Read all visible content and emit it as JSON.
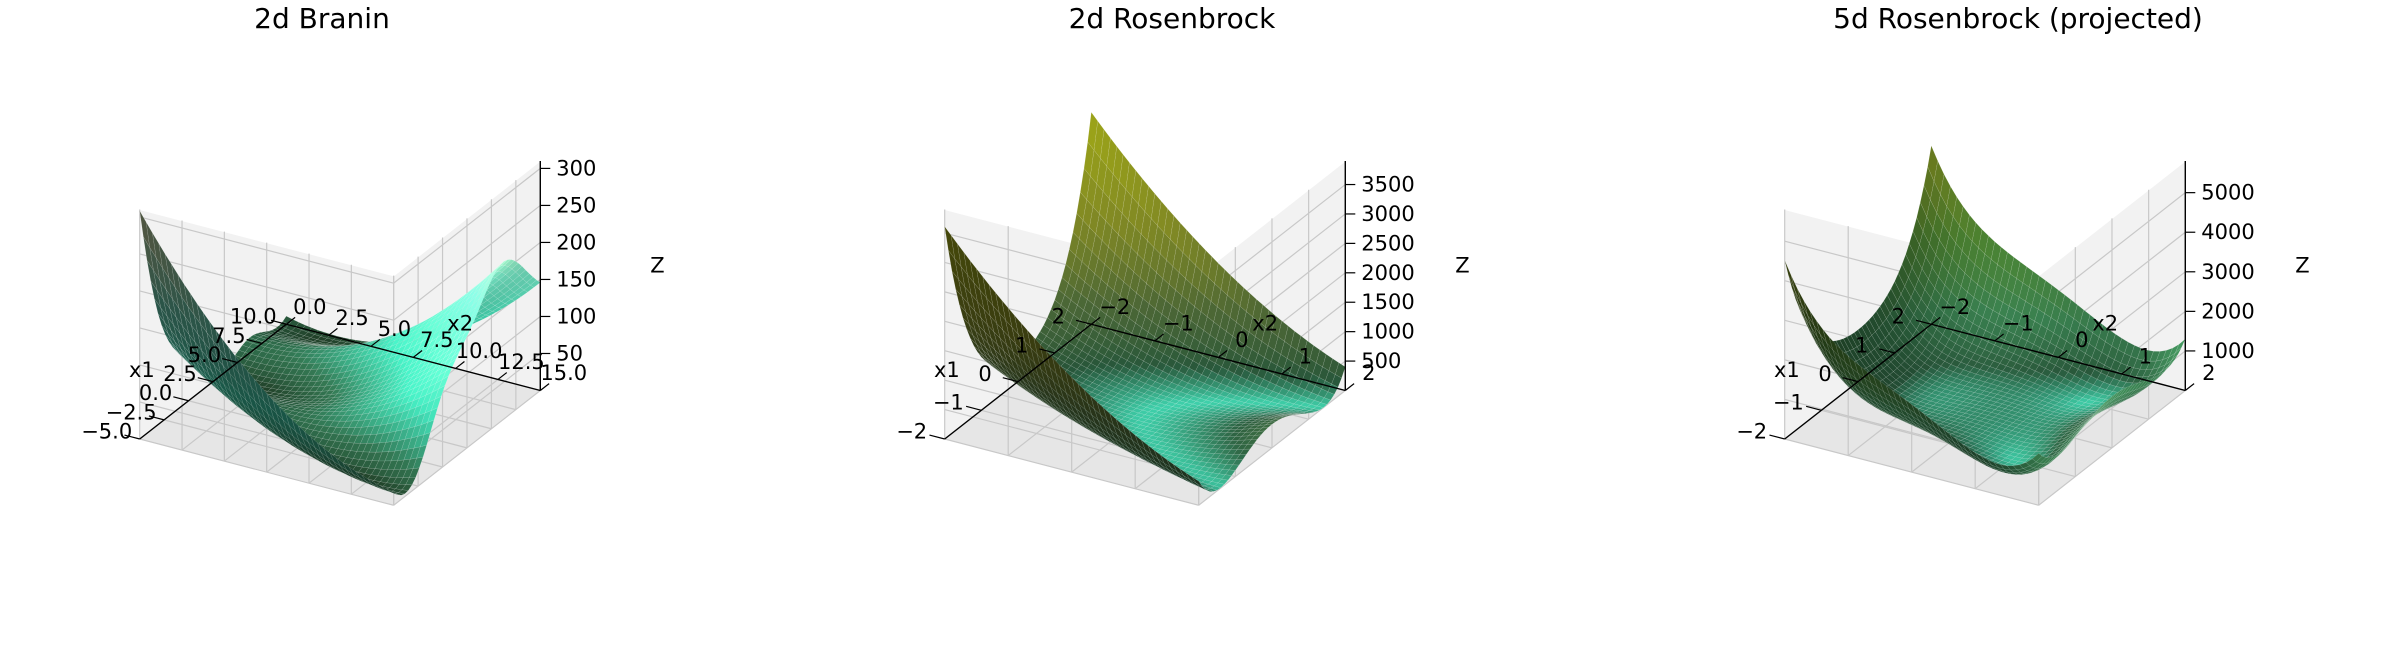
{
  "chart_data": [
    {
      "type": "surface",
      "title": "2d Branin",
      "xlabel": "x1",
      "ylabel": "x2",
      "zlabel": "Z",
      "function": "branin",
      "xlim": [
        -5,
        10
      ],
      "ylim": [
        0,
        15
      ],
      "zlim": [
        0,
        310
      ],
      "x_ticks": [
        -5.0,
        -2.5,
        0.0,
        2.5,
        5.0,
        7.5,
        10.0
      ],
      "x_tick_labels": [
        "−5.0",
        "−2.5",
        "0.0",
        "2.5",
        "5.0",
        "7.5",
        "10.0"
      ],
      "y_ticks": [
        0.0,
        2.5,
        5.0,
        7.5,
        10.0,
        12.5,
        15.0
      ],
      "y_tick_labels": [
        "0.0",
        "2.5",
        "5.0",
        "7.5",
        "10.0",
        "12.5",
        "15.0"
      ],
      "z_ticks": [
        50,
        100,
        150,
        200,
        250,
        300
      ],
      "z_tick_labels": [
        "50",
        "100",
        "150",
        "200",
        "250",
        "300"
      ],
      "colormap": [
        "#1f3a24",
        "#2e6b4a",
        "#3fd6b0",
        "#7cf2cf",
        "#f3f7b8"
      ],
      "grid": true
    },
    {
      "type": "surface",
      "title": "2d Rosenbrock",
      "xlabel": "x1",
      "ylabel": "x2",
      "zlabel": "Z",
      "function": "rosenbrock2d",
      "xlim": [
        -2,
        2
      ],
      "ylim": [
        -2,
        2
      ],
      "zlim": [
        0,
        3900
      ],
      "x_ticks": [
        -2,
        -1,
        0,
        1,
        2
      ],
      "x_tick_labels": [
        "−2",
        "−1",
        "0",
        "1",
        "2"
      ],
      "y_ticks": [
        -2,
        -1,
        0,
        1,
        2
      ],
      "y_tick_labels": [
        "−2",
        "−1",
        "0",
        "1",
        "2"
      ],
      "z_ticks": [
        500,
        1000,
        1500,
        2000,
        2500,
        3000,
        3500
      ],
      "z_tick_labels": [
        "500",
        "1000",
        "1500",
        "2000",
        "2500",
        "3000",
        "3500"
      ],
      "colormap": [
        "#3fd6b0",
        "#2a5a3c",
        "#56753d",
        "#9ca62c",
        "#c8d21c"
      ],
      "grid": true
    },
    {
      "type": "surface",
      "title": "5d Rosenbrock (projected)",
      "xlabel": "x1",
      "ylabel": "x2",
      "zlabel": "Z",
      "function": "rosenbrock5d_projected",
      "xlim": [
        -2,
        2
      ],
      "ylim": [
        -2,
        2
      ],
      "zlim": [
        0,
        5800
      ],
      "x_ticks": [
        -2,
        -1,
        0,
        1,
        2
      ],
      "x_tick_labels": [
        "−2",
        "−1",
        "0",
        "1",
        "2"
      ],
      "y_ticks": [
        -2,
        -1,
        0,
        1,
        2
      ],
      "y_tick_labels": [
        "−2",
        "−1",
        "0",
        "1",
        "2"
      ],
      "z_ticks": [
        1000,
        2000,
        3000,
        4000,
        5000
      ],
      "z_tick_labels": [
        "1000",
        "2000",
        "3000",
        "4000",
        "5000"
      ],
      "colormap": [
        "#3fd6b0",
        "#2a5a3c",
        "#3e8a56",
        "#5a9b3a",
        "#a5b82a"
      ],
      "grid": true
    }
  ]
}
